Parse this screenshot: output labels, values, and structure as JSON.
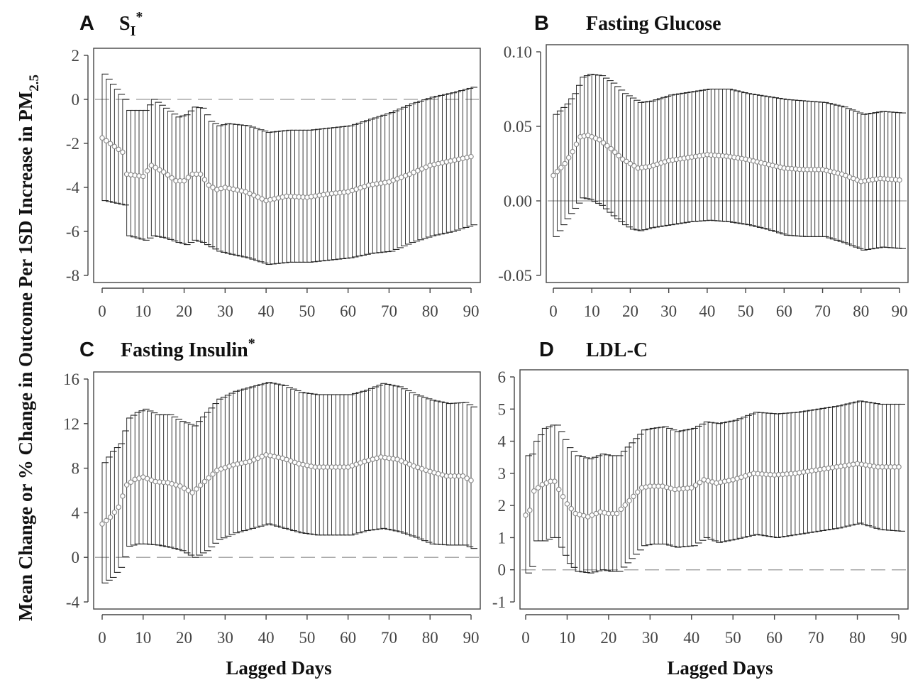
{
  "figure": {
    "y_axis_title": "Mean Change or % Change in Outcome Per 1SD Increase in PM",
    "y_axis_title_subscript": "2.5",
    "x_axis_title": "Lagged Days"
  },
  "chart_data": [
    {
      "type": "scatter",
      "panel": "A",
      "title": "S",
      "title_subscript": "I",
      "title_superscript": "*",
      "xlabel": "Lagged Days",
      "xlim": [
        0,
        90
      ],
      "ylim": [
        -8,
        2
      ],
      "xticks": [
        0,
        10,
        20,
        30,
        40,
        50,
        60,
        70,
        80,
        90
      ],
      "yticks": [
        2,
        0,
        -2,
        -4,
        -6,
        -8
      ],
      "ytick_labels": [
        "2",
        "0",
        "-2",
        "-4",
        "-6",
        "-8"
      ],
      "reference_line": {
        "y": 0,
        "style": "dashed"
      },
      "grid": false,
      "legend": "none",
      "colors": {
        "points": "#888888",
        "bars": "#222222"
      },
      "series": [
        {
          "x": [
            [
              0,
              5,
              6,
              10,
              12,
              15,
              18,
              20,
              22,
              24,
              26,
              28,
              30,
              35,
              40,
              45,
              50,
              55,
              60,
              65,
              70,
              75,
              80,
              85,
              90
            ]
          ],
          "y": [
            [
              -1.75,
              -2.4,
              -3.4,
              -3.5,
              -3.0,
              -3.3,
              -3.7,
              -3.7,
              -3.4,
              -3.4,
              -3.9,
              -4.1,
              -4.0,
              -4.2,
              -4.6,
              -4.4,
              -4.45,
              -4.3,
              -4.2,
              -3.9,
              -3.75,
              -3.4,
              -3.0,
              -2.8,
              -2.6
            ]
          ],
          "lower": [
            [
              -4.6,
              -4.8,
              -6.2,
              -6.4,
              -6.2,
              -6.3,
              -6.5,
              -6.6,
              -6.4,
              -6.5,
              -6.7,
              -6.9,
              -7.0,
              -7.2,
              -7.5,
              -7.4,
              -7.4,
              -7.3,
              -7.2,
              -7.0,
              -6.9,
              -6.5,
              -6.2,
              -6.0,
              -5.7
            ]
          ],
          "upper": [
            [
              1.15,
              0.0,
              -0.5,
              -0.5,
              0.0,
              -0.4,
              -0.8,
              -0.7,
              -0.35,
              -0.4,
              -1.0,
              -1.2,
              -1.1,
              -1.2,
              -1.5,
              -1.4,
              -1.4,
              -1.3,
              -1.2,
              -0.9,
              -0.6,
              -0.2,
              0.1,
              0.3,
              0.55
            ]
          ]
        }
      ]
    },
    {
      "type": "scatter",
      "panel": "B",
      "title": "Fasting Glucose",
      "xlabel": "Lagged Days",
      "xlim": [
        0,
        90
      ],
      "ylim": [
        -0.05,
        0.1
      ],
      "xticks": [
        0,
        10,
        20,
        30,
        40,
        50,
        60,
        70,
        80,
        90
      ],
      "yticks": [
        0.1,
        0.05,
        0.0,
        -0.05
      ],
      "ytick_labels": [
        "0.10",
        "0.05",
        "0.00",
        "-0.05"
      ],
      "reference_line": {
        "y": 0,
        "style": "solid"
      },
      "grid": false,
      "legend": "none",
      "colors": {
        "points": "#888888",
        "bars": "#222222"
      },
      "series": [
        {
          "x": [
            [
              0,
              3,
              5,
              7,
              9,
              12,
              15,
              18,
              20,
              22,
              25,
              30,
              35,
              40,
              45,
              50,
              55,
              60,
              65,
              70,
              75,
              80,
              85,
              90
            ]
          ],
          "y": [
            [
              0.017,
              0.025,
              0.033,
              0.043,
              0.044,
              0.041,
              0.035,
              0.028,
              0.025,
              0.022,
              0.023,
              0.027,
              0.029,
              0.031,
              0.03,
              0.028,
              0.025,
              0.022,
              0.021,
              0.021,
              0.018,
              0.013,
              0.015,
              0.014
            ]
          ],
          "lower": [
            [
              -0.024,
              -0.012,
              -0.005,
              0.002,
              0.001,
              -0.003,
              -0.01,
              -0.016,
              -0.019,
              -0.02,
              -0.018,
              -0.016,
              -0.014,
              -0.013,
              -0.014,
              -0.016,
              -0.019,
              -0.023,
              -0.024,
              -0.024,
              -0.028,
              -0.033,
              -0.031,
              -0.032
            ]
          ],
          "upper": [
            [
              0.058,
              0.065,
              0.072,
              0.083,
              0.085,
              0.084,
              0.079,
              0.072,
              0.069,
              0.066,
              0.067,
              0.071,
              0.073,
              0.075,
              0.075,
              0.072,
              0.07,
              0.068,
              0.067,
              0.066,
              0.063,
              0.058,
              0.06,
              0.059
            ]
          ]
        }
      ]
    },
    {
      "type": "scatter",
      "panel": "C",
      "title": "Fasting Insulin",
      "title_superscript": "*",
      "xlabel": "Lagged Days",
      "xlim": [
        0,
        90
      ],
      "ylim": [
        -4,
        16
      ],
      "xticks": [
        0,
        10,
        20,
        30,
        40,
        50,
        60,
        70,
        80,
        90
      ],
      "yticks": [
        16,
        12,
        8,
        4,
        0,
        -4
      ],
      "ytick_labels": [
        "16",
        "12",
        "8",
        "4",
        "0",
        "-4"
      ],
      "reference_line": {
        "y": 0,
        "style": "dashed"
      },
      "grid": false,
      "legend": "none",
      "colors": {
        "points": "#888888",
        "bars": "#222222"
      },
      "series": [
        {
          "x": [
            [
              0,
              2,
              4,
              6,
              8,
              10,
              13,
              16,
              19,
              22,
              25,
              28,
              32,
              36,
              40,
              44,
              48,
              52,
              56,
              60,
              64,
              68,
              72,
              76,
              80,
              84,
              88,
              90
            ]
          ],
          "y": [
            [
              3.0,
              3.6,
              4.5,
              6.5,
              7.0,
              7.2,
              6.8,
              6.7,
              6.4,
              5.8,
              6.8,
              7.8,
              8.3,
              8.6,
              9.2,
              8.9,
              8.4,
              8.1,
              8.1,
              8.1,
              8.6,
              9.0,
              8.8,
              8.2,
              7.7,
              7.3,
              7.3,
              6.9
            ]
          ],
          "lower": [
            [
              -2.3,
              -1.8,
              -0.9,
              1.0,
              1.2,
              1.2,
              1.1,
              0.9,
              0.6,
              0.0,
              0.6,
              1.6,
              2.2,
              2.6,
              3.0,
              2.6,
              2.2,
              2.0,
              2.0,
              2.0,
              2.4,
              2.6,
              2.3,
              1.8,
              1.2,
              1.1,
              1.1,
              0.8
            ]
          ],
          "upper": [
            [
              8.5,
              9.5,
              10.2,
              12.5,
              13.0,
              13.3,
              12.8,
              12.8,
              12.2,
              11.8,
              13.0,
              14.2,
              14.9,
              15.3,
              15.7,
              15.4,
              14.8,
              14.6,
              14.6,
              14.6,
              15.0,
              15.6,
              15.3,
              14.6,
              14.1,
              13.8,
              13.9,
              13.5
            ]
          ]
        }
      ]
    },
    {
      "type": "scatter",
      "panel": "D",
      "title": "LDL-C",
      "xlabel": "Lagged Days",
      "xlim": [
        0,
        90
      ],
      "ylim": [
        -1,
        6
      ],
      "xticks": [
        0,
        10,
        20,
        30,
        40,
        50,
        60,
        70,
        80,
        90
      ],
      "yticks": [
        6,
        5,
        4,
        3,
        2,
        1,
        0,
        -1
      ],
      "ytick_labels": [
        "6",
        "5",
        "4",
        "3",
        "2",
        "1",
        "0",
        "-1"
      ],
      "reference_line": {
        "y": 0,
        "style": "dashed"
      },
      "grid": false,
      "legend": "none",
      "colors": {
        "points": "#888888",
        "bars": "#222222"
      },
      "series": [
        {
          "x": [
            [
              0,
              1,
              2,
              4,
              6,
              7,
              8,
              10,
              12,
              15,
              18,
              20,
              22,
              25,
              28,
              30,
              33,
              36,
              40,
              43,
              46,
              50,
              55,
              60,
              65,
              70,
              75,
              80,
              85,
              90
            ]
          ],
          "y": [
            [
              1.7,
              1.85,
              2.45,
              2.65,
              2.75,
              2.75,
              2.5,
              2.05,
              1.75,
              1.65,
              1.8,
              1.75,
              1.75,
              2.15,
              2.55,
              2.6,
              2.6,
              2.5,
              2.55,
              2.8,
              2.7,
              2.8,
              3.0,
              2.95,
              3.0,
              3.1,
              3.2,
              3.3,
              3.2,
              3.2
            ]
          ],
          "lower": [
            [
              -0.1,
              0.1,
              0.9,
              0.9,
              1.0,
              1.0,
              0.7,
              0.2,
              -0.05,
              -0.1,
              0.0,
              -0.05,
              -0.05,
              0.35,
              0.75,
              0.8,
              0.8,
              0.7,
              0.75,
              1.0,
              0.85,
              0.95,
              1.1,
              1.0,
              1.1,
              1.2,
              1.3,
              1.45,
              1.25,
              1.2
            ]
          ],
          "upper": [
            [
              3.55,
              3.6,
              4.0,
              4.4,
              4.5,
              4.5,
              4.3,
              3.8,
              3.55,
              3.45,
              3.6,
              3.55,
              3.55,
              3.95,
              4.35,
              4.4,
              4.45,
              4.3,
              4.4,
              4.6,
              4.55,
              4.65,
              4.9,
              4.85,
              4.9,
              5.0,
              5.1,
              5.25,
              5.15,
              5.15
            ]
          ]
        }
      ]
    }
  ]
}
